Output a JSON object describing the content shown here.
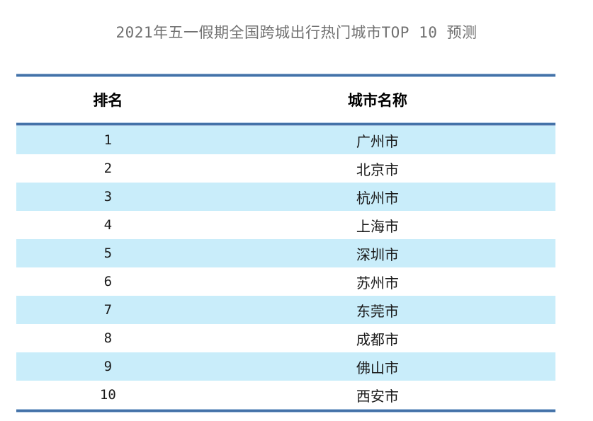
{
  "title": "2021年五一假期全国跨城出行热门城市TOP 10 预测",
  "table": {
    "headers": {
      "rank": "排名",
      "city": "城市名称"
    },
    "rows": [
      {
        "rank": "1",
        "city": "广州市"
      },
      {
        "rank": "2",
        "city": "北京市"
      },
      {
        "rank": "3",
        "city": "杭州市"
      },
      {
        "rank": "4",
        "city": "上海市"
      },
      {
        "rank": "5",
        "city": "深圳市"
      },
      {
        "rank": "6",
        "city": "苏州市"
      },
      {
        "rank": "7",
        "city": "东莞市"
      },
      {
        "rank": "8",
        "city": "成都市"
      },
      {
        "rank": "9",
        "city": "佛山市"
      },
      {
        "rank": "10",
        "city": "西安市"
      }
    ]
  },
  "colors": {
    "title_text": "#707070",
    "body_text": "#1a1a1a",
    "header_text": "#000000",
    "alt_row_bg": "#c9edfa",
    "rule_core": "#4472a8",
    "rule_edge": "#a9c3df",
    "background": "#ffffff"
  },
  "chart_data": {
    "type": "table",
    "title": "2021年五一假期全国跨城出行热门城市TOP 10 预测",
    "columns": [
      "排名",
      "城市名称"
    ],
    "rows": [
      [
        1,
        "广州市"
      ],
      [
        2,
        "北京市"
      ],
      [
        3,
        "杭州市"
      ],
      [
        4,
        "上海市"
      ],
      [
        5,
        "深圳市"
      ],
      [
        6,
        "苏州市"
      ],
      [
        7,
        "东莞市"
      ],
      [
        8,
        "成都市"
      ],
      [
        9,
        "佛山市"
      ],
      [
        10,
        "西安市"
      ]
    ],
    "layout_hints": {
      "row_banding": "odd rows pale blue #c9edfa, even rows white",
      "rules": [
        "above header",
        "below header",
        "below last row"
      ],
      "grid": false,
      "legend": false
    }
  }
}
